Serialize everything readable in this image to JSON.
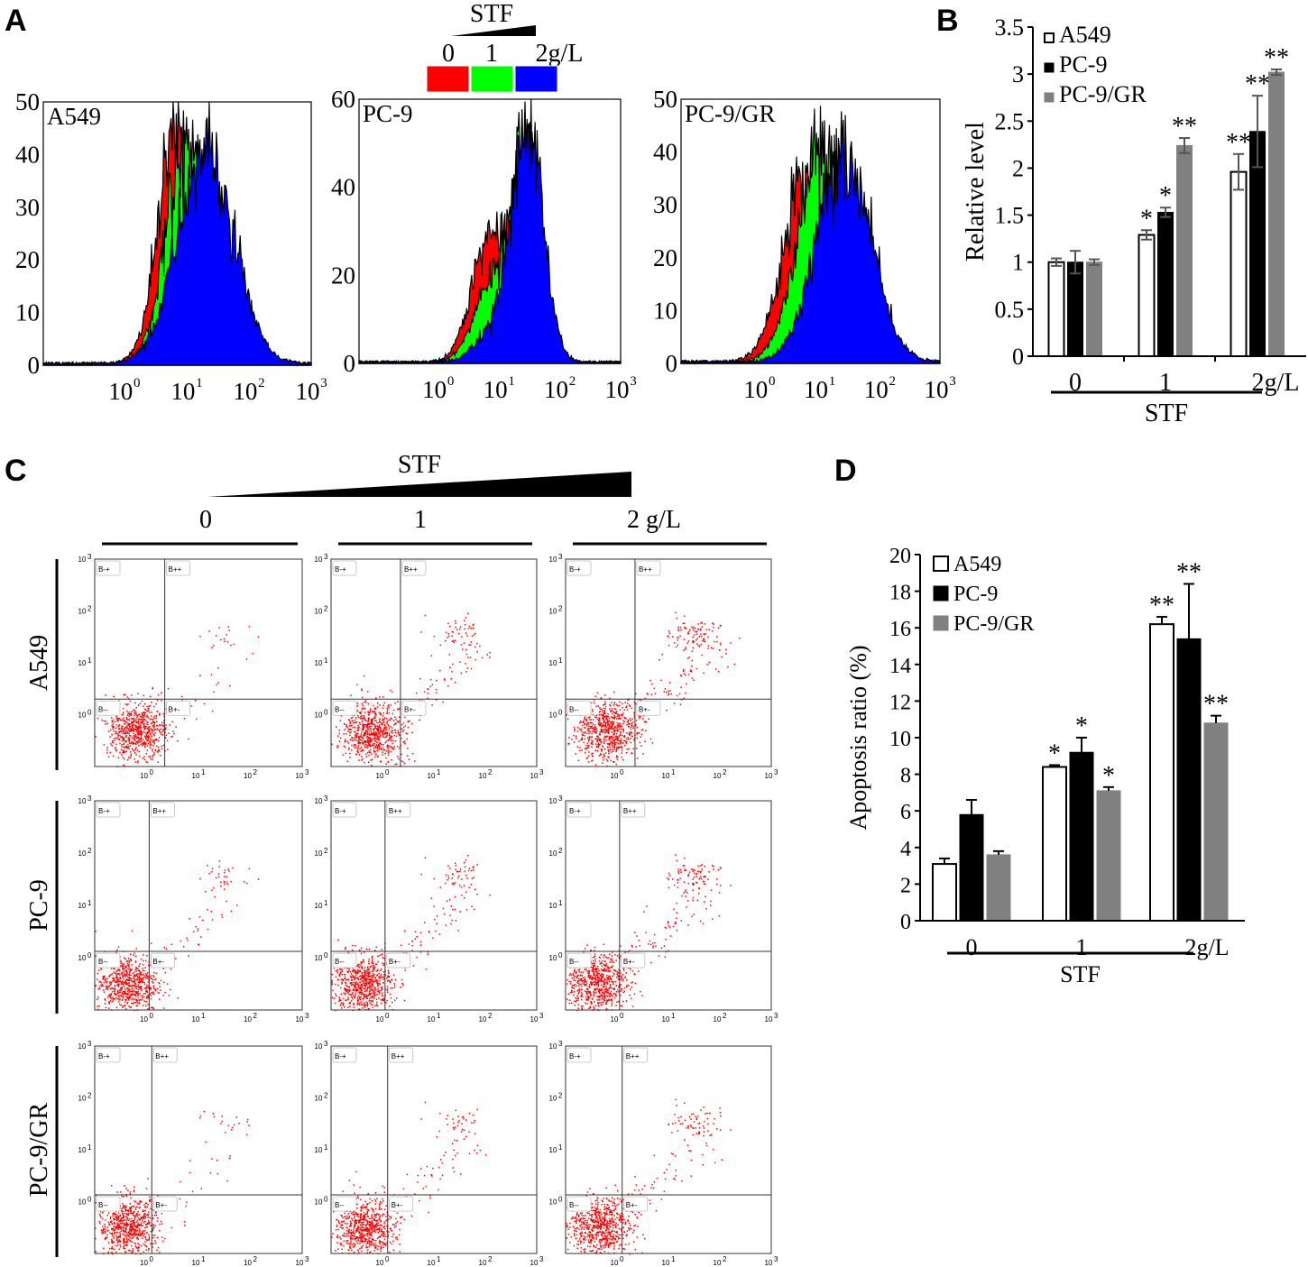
{
  "panel_labels": [
    "A",
    "B",
    "C",
    "D"
  ],
  "colors": {
    "dose0": "#ff0000",
    "dose1": "#00ff00",
    "dose2": "#0000ff",
    "a549": "#ffffff",
    "pc9": "#000000",
    "pc9gr": "#808080",
    "dots": "#ff0000"
  },
  "chart_data": [
    {
      "type": "area",
      "panel": "A",
      "title": "",
      "legend": {
        "title": "STF",
        "entries": [
          "0",
          "1",
          "2g/L"
        ],
        "placement": "top-center"
      },
      "x_scale": "log",
      "xlim_log10": [
        -1.3,
        3
      ],
      "x_tick_labels": [
        "10",
        "10",
        "10",
        "10"
      ],
      "x_tick_exponents": [
        "0",
        "1",
        "2",
        "3"
      ],
      "plots": [
        {
          "name": "A549",
          "ylim": [
            0,
            50
          ],
          "yticks": [
            "0",
            "10",
            "20",
            "30",
            "40",
            "50"
          ],
          "yvals": [
            0,
            10,
            20,
            30,
            40,
            50
          ],
          "series": [
            {
              "dose": "0",
              "components": [
                {
                  "mean": 0.85,
                  "sd": 0.3,
                  "peak": 44
                }
              ]
            },
            {
              "dose": "1",
              "components": [
                {
                  "mean": 1.0,
                  "sd": 0.33,
                  "peak": 42
                }
              ]
            },
            {
              "dose": "2g/L",
              "components": [
                {
                  "mean": 1.3,
                  "sd": 0.45,
                  "peak": 40
                }
              ]
            }
          ]
        },
        {
          "name": "PC-9",
          "ylim": [
            0,
            60
          ],
          "yticks": [
            "0",
            "20",
            "40",
            "60"
          ],
          "yvals": [
            0,
            20,
            40,
            60
          ],
          "series": [
            {
              "dose": "0",
              "components": [
                {
                  "mean": 0.85,
                  "sd": 0.3,
                  "peak": 27
                },
                {
                  "mean": 1.45,
                  "sd": 0.22,
                  "peak": 40
                }
              ]
            },
            {
              "dose": "1",
              "components": [
                {
                  "mean": 0.9,
                  "sd": 0.3,
                  "peak": 18
                },
                {
                  "mean": 1.45,
                  "sd": 0.22,
                  "peak": 48
                }
              ]
            },
            {
              "dose": "2g/L",
              "components": [
                {
                  "mean": 0.95,
                  "sd": 0.3,
                  "peak": 8
                },
                {
                  "mean": 1.48,
                  "sd": 0.25,
                  "peak": 52
                }
              ]
            }
          ]
        },
        {
          "name": "PC-9/GR",
          "ylim": [
            0,
            50
          ],
          "yticks": [
            "0",
            "10",
            "20",
            "30",
            "40",
            "50"
          ],
          "yvals": [
            0,
            10,
            20,
            30,
            40,
            50
          ],
          "series": [
            {
              "dose": "0",
              "components": [
                {
                  "mean": 0.8,
                  "sd": 0.38,
                  "peak": 38
                }
              ]
            },
            {
              "dose": "1",
              "components": [
                {
                  "mean": 1.05,
                  "sd": 0.4,
                  "peak": 40
                }
              ]
            },
            {
              "dose": "2g/L",
              "components": [
                {
                  "mean": 1.4,
                  "sd": 0.45,
                  "peak": 39
                }
              ]
            }
          ]
        }
      ]
    },
    {
      "type": "bar",
      "panel": "B",
      "ylabel": "Relative level",
      "xlabel": "STF",
      "categories": [
        "0",
        "1",
        "2g/L"
      ],
      "ylim": [
        0,
        3.5
      ],
      "yticks": [
        "0",
        "0.5",
        "1",
        "1.5",
        "2",
        "2.5",
        "3",
        "3.5"
      ],
      "yvals": [
        0,
        0.5,
        1,
        1.5,
        2,
        2.5,
        3,
        3.5
      ],
      "legend_placement": "top-left",
      "series": [
        {
          "name": "A549",
          "values": [
            1.0,
            1.29,
            1.96
          ],
          "errors": [
            0.04,
            0.05,
            0.19
          ],
          "sig": [
            "",
            "*",
            "**"
          ]
        },
        {
          "name": "PC-9",
          "values": [
            1.0,
            1.53,
            2.39
          ],
          "errors": [
            0.12,
            0.05,
            0.38
          ],
          "sig": [
            "",
            "*",
            "**"
          ]
        },
        {
          "name": "PC-9/GR",
          "values": [
            1.0,
            2.24,
            3.02
          ],
          "errors": [
            0.03,
            0.08,
            0.03
          ],
          "sig": [
            "",
            "**",
            "**"
          ]
        }
      ]
    },
    {
      "type": "scatter",
      "panel": "C",
      "header": {
        "title": "STF",
        "doses": [
          "0",
          "1",
          "2 g/L"
        ]
      },
      "rows": [
        "A549",
        "PC-9",
        "PC-9/GR"
      ],
      "quadrant_labels": [
        "B-+",
        "B++",
        "B--",
        "B+-"
      ],
      "tick_labels": [
        "10",
        "10",
        "10",
        "10"
      ],
      "tick_exponents": [
        "0",
        "1",
        "2",
        "3"
      ],
      "lim_log10": [
        -1,
        3
      ],
      "cells": [
        {
          "row": "A549",
          "dose": "0",
          "gate": [
            0.35,
            0.3
          ],
          "apoptotic_pct": 3.1
        },
        {
          "row": "A549",
          "dose": "1",
          "gate": [
            0.35,
            0.3
          ],
          "apoptotic_pct": 8.4
        },
        {
          "row": "A549",
          "dose": "2 g/L",
          "gate": [
            0.35,
            0.3
          ],
          "apoptotic_pct": 16.2
        },
        {
          "row": "PC-9",
          "dose": "0",
          "gate": [
            0.05,
            0.12
          ],
          "apoptotic_pct": 5.8
        },
        {
          "row": "PC-9",
          "dose": "1",
          "gate": [
            0.05,
            0.12
          ],
          "apoptotic_pct": 9.2
        },
        {
          "row": "PC-9",
          "dose": "2 g/L",
          "gate": [
            0.05,
            0.12
          ],
          "apoptotic_pct": 15.4
        },
        {
          "row": "PC-9/GR",
          "dose": "0",
          "gate": [
            0.1,
            0.13
          ],
          "apoptotic_pct": 3.6
        },
        {
          "row": "PC-9/GR",
          "dose": "1",
          "gate": [
            0.1,
            0.13
          ],
          "apoptotic_pct": 7.1
        },
        {
          "row": "PC-9/GR",
          "dose": "2 g/L",
          "gate": [
            0.1,
            0.13
          ],
          "apoptotic_pct": 10.8
        }
      ]
    },
    {
      "type": "bar",
      "panel": "D",
      "ylabel": "Apoptosis ratio (%)",
      "xlabel": "STF",
      "categories": [
        "0",
        "1",
        "2g/L"
      ],
      "ylim": [
        0,
        20
      ],
      "yticks": [
        "0",
        "2",
        "4",
        "6",
        "8",
        "10",
        "12",
        "14",
        "16",
        "18",
        "20"
      ],
      "yvals": [
        0,
        2,
        4,
        6,
        8,
        10,
        12,
        14,
        16,
        18,
        20
      ],
      "legend_placement": "top-left",
      "series": [
        {
          "name": "A549",
          "values": [
            3.1,
            8.4,
            16.2
          ],
          "errors": [
            0.3,
            0.1,
            0.4
          ],
          "sig": [
            "",
            "*",
            "**"
          ]
        },
        {
          "name": "PC-9",
          "values": [
            5.8,
            9.2,
            15.4
          ],
          "errors": [
            0.8,
            0.8,
            3.0
          ],
          "sig": [
            "",
            "*",
            "**"
          ]
        },
        {
          "name": "PC-9/GR",
          "values": [
            3.6,
            7.1,
            10.8
          ],
          "errors": [
            0.2,
            0.2,
            0.4
          ],
          "sig": [
            "",
            "*",
            "**"
          ]
        }
      ]
    }
  ]
}
